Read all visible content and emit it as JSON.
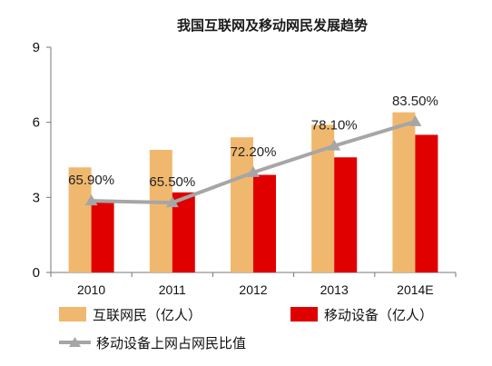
{
  "chart_data": {
    "type": "bar",
    "title": "我国互联网及移动网民发展趋势",
    "categories": [
      "2010",
      "2011",
      "2012",
      "2013",
      "2014E"
    ],
    "ylim": [
      0,
      9
    ],
    "yticks": [
      "0",
      "3",
      "6",
      "9"
    ],
    "grid": false,
    "legend_position": "bottom",
    "series": [
      {
        "name": "互联网民（亿人）",
        "type": "bar",
        "color": "#F0B86E",
        "values": [
          4.2,
          4.9,
          5.4,
          5.9,
          6.4
        ]
      },
      {
        "name": "移动设备（亿人）",
        "type": "bar",
        "color": "#E00000",
        "values": [
          2.8,
          3.2,
          3.9,
          4.6,
          5.5
        ]
      },
      {
        "name": "移动设备上网占网民比值",
        "type": "line",
        "color": "#A6A6A6",
        "values": [
          65.9,
          65.5,
          72.2,
          78.1,
          83.5
        ],
        "labels": [
          "65.90%",
          "65.50%",
          "72.20%",
          "78.10%",
          "83.50%"
        ]
      }
    ]
  }
}
